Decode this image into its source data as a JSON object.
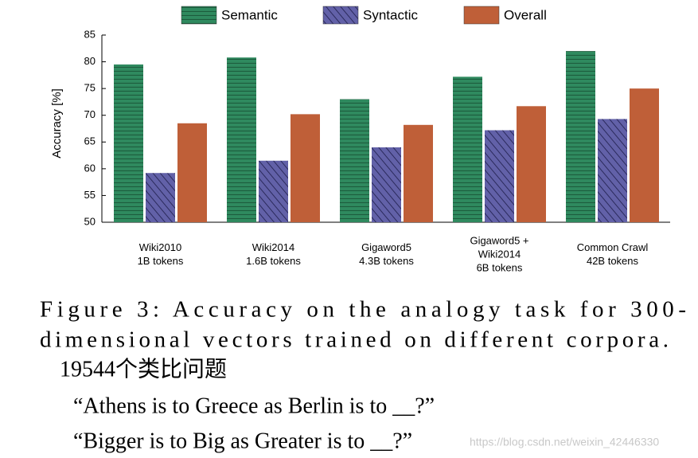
{
  "chart_data": {
    "type": "bar",
    "ylabel": "Accuracy [%]",
    "categories": [
      [
        "Wiki2010",
        "1B tokens"
      ],
      [
        "Wiki2014",
        "1.6B tokens"
      ],
      [
        "Gigaword5",
        "4.3B tokens"
      ],
      [
        "Gigaword5 +",
        "Wiki2014",
        "6B tokens"
      ],
      [
        "Common Crawl",
        "42B tokens"
      ]
    ],
    "series": [
      {
        "name": "Semantic",
        "color": "#2f8a5f",
        "pattern": "horizontal",
        "values": [
          79.5,
          80.8,
          73,
          77.2,
          82
        ]
      },
      {
        "name": "Syntactic",
        "color": "#5b5a9e",
        "pattern": "diagonal",
        "values": [
          59.2,
          61.5,
          64,
          67.2,
          69.3
        ]
      },
      {
        "name": "Overall",
        "color": "#bf5f38",
        "pattern": "none",
        "values": [
          68.5,
          70.2,
          68.2,
          71.7,
          75
        ]
      }
    ],
    "ylim": [
      50,
      85
    ],
    "yticks": [
      50,
      55,
      60,
      65,
      70,
      75,
      80,
      85
    ],
    "grid": false,
    "legend": "top"
  },
  "caption": [
    "Figure 3: Accuracy on the analogy task for 300-",
    "dimensional vectors trained on different corpora."
  ],
  "notes": [
    "19544个类比问题",
    "“Athens is to Greece as Berlin is to __?”",
    "“Bigger is to Big as Greater is to __?”"
  ],
  "watermark": "https://blog.csdn.net/weixin_42446330"
}
